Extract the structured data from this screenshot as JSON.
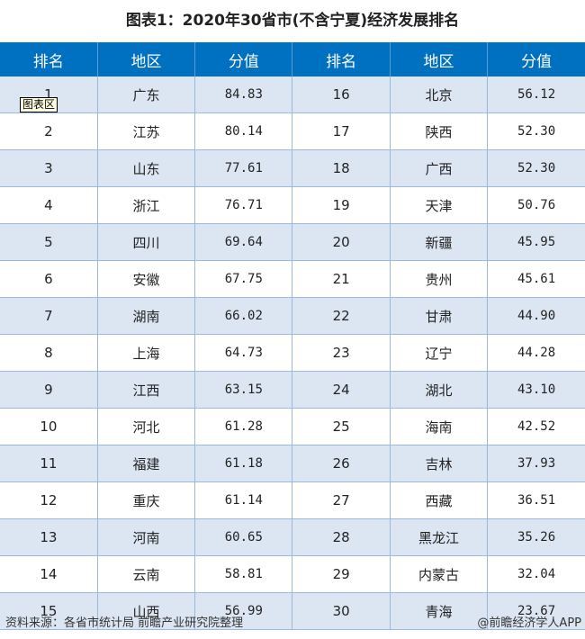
{
  "title": "图表1：2020年30省市(不含宁夏)经济发展排名",
  "headers": [
    "排名",
    "地区",
    "分值",
    "排名",
    "地区",
    "分值"
  ],
  "rows": [
    [
      "1",
      "广东",
      "84.83",
      "16",
      "北京",
      "56.12"
    ],
    [
      "2",
      "江苏",
      "80.14",
      "17",
      "陕西",
      "52.30"
    ],
    [
      "3",
      "山东",
      "77.61",
      "18",
      "广西",
      "52.30"
    ],
    [
      "4",
      "浙江",
      "76.71",
      "19",
      "天津",
      "50.76"
    ],
    [
      "5",
      "四川",
      "69.64",
      "20",
      "新疆",
      "45.95"
    ],
    [
      "6",
      "安徽",
      "67.75",
      "21",
      "贵州",
      "45.61"
    ],
    [
      "7",
      "湖南",
      "66.02",
      "22",
      "甘肃",
      "44.90"
    ],
    [
      "8",
      "上海",
      "64.73",
      "23",
      "辽宁",
      "44.28"
    ],
    [
      "9",
      "江西",
      "63.15",
      "24",
      "湖北",
      "43.10"
    ],
    [
      "10",
      "河北",
      "61.28",
      "25",
      "海南",
      "42.52"
    ],
    [
      "11",
      "福建",
      "61.18",
      "26",
      "吉林",
      "37.93"
    ],
    [
      "12",
      "重庆",
      "61.14",
      "27",
      "西藏",
      "36.51"
    ],
    [
      "13",
      "河南",
      "60.65",
      "28",
      "黑龙江",
      "35.26"
    ],
    [
      "14",
      "云南",
      "58.81",
      "29",
      "内蒙古",
      "32.04"
    ],
    [
      "15",
      "山西",
      "56.99",
      "30",
      "青海",
      "23.67"
    ]
  ],
  "tooltip": "图表区",
  "footer": {
    "source": "资料来源：各省市统计局 前瞻产业研究院整理",
    "credit": "@前瞻经济学人APP"
  }
}
